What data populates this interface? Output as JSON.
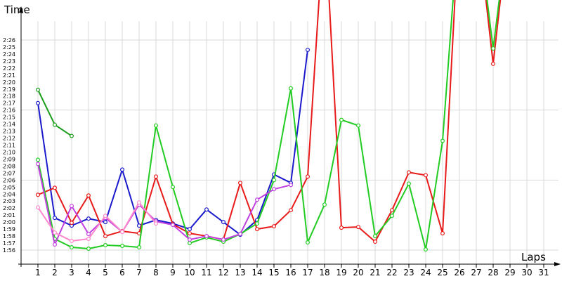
{
  "chart_data": {
    "type": "line",
    "xlabel": "Laps",
    "ylabel": "Time",
    "xlim": [
      1,
      31
    ],
    "ylim": [
      "1:56",
      "2:26"
    ],
    "x_ticks": [
      "1",
      "2",
      "3",
      "4",
      "5",
      "6",
      "7",
      "8",
      "9",
      "10",
      "11",
      "12",
      "13",
      "14",
      "15",
      "16",
      "17",
      "18",
      "19",
      "20",
      "21",
      "22",
      "23",
      "24",
      "25",
      "26",
      "27",
      "28",
      "29",
      "30",
      "31"
    ],
    "y_ticks": [
      "1:56",
      "1:57",
      "1:58",
      "1:59",
      "2:00",
      "2:01",
      "2:02",
      "2:03",
      "2:04",
      "2:05",
      "2:06",
      "2:07",
      "2:08",
      "2:09",
      "2:10",
      "2:11",
      "2:12",
      "2:13",
      "2:14",
      "2:15",
      "2:16",
      "2:17",
      "2:18",
      "2:19",
      "2:20",
      "2:21",
      "2:22",
      "2:23",
      "2:24",
      "2:25",
      "2:26"
    ],
    "grid": true,
    "series": [
      {
        "color": "#1a9e1a",
        "points": [
          [
            1,
            "2:18.9"
          ],
          [
            2,
            "2:13.9"
          ],
          [
            3,
            "2:12.3"
          ]
        ]
      },
      {
        "color": "#1a1acc",
        "points": [
          [
            1,
            "2:17.0"
          ],
          [
            2,
            "2:00.6"
          ],
          [
            3,
            "1:59.5"
          ],
          [
            4,
            "2:00.5"
          ],
          [
            5,
            "2:00.0"
          ],
          [
            6,
            "2:07.5"
          ],
          [
            7,
            "1:59.5"
          ],
          [
            8,
            "2:00.3"
          ],
          [
            9,
            "1:59.8"
          ],
          [
            10,
            "1:59.0"
          ],
          [
            11,
            "2:01.8"
          ],
          [
            12,
            "2:00.0"
          ],
          [
            13,
            "1:58.2"
          ],
          [
            14,
            "2:00.3"
          ],
          [
            15,
            "2:06.8"
          ],
          [
            16,
            "2:05.6"
          ],
          [
            17,
            "2:24.6"
          ]
        ]
      },
      {
        "color": "#e81a1a",
        "points": [
          [
            1,
            "2:03.9"
          ],
          [
            2,
            "2:04.9"
          ],
          [
            3,
            "1:59.9"
          ],
          [
            4,
            "2:03.8"
          ],
          [
            5,
            "1:58.0"
          ],
          [
            6,
            "1:58.7"
          ],
          [
            7,
            "1:58.4"
          ],
          [
            8,
            "2:06.5"
          ],
          [
            9,
            "1:59.7"
          ],
          [
            10,
            "1:58.4"
          ],
          [
            11,
            "1:58.0"
          ],
          [
            12,
            "1:57.5"
          ],
          [
            13,
            "2:05.6"
          ],
          [
            14,
            "1:59.0"
          ],
          [
            15,
            "1:59.4"
          ],
          [
            16,
            "2:01.7"
          ],
          [
            17,
            "2:06.5"
          ],
          [
            18,
            "2:44"
          ],
          [
            19,
            "1:59.2"
          ],
          [
            20,
            "1:59.3"
          ],
          [
            21,
            "1:57.2"
          ],
          [
            22,
            "2:01.7"
          ],
          [
            23,
            "2:07.1"
          ],
          [
            24,
            "2:06.7"
          ],
          [
            25,
            "1:58.4"
          ],
          [
            26,
            "2:44"
          ],
          [
            27,
            "2:44"
          ],
          [
            28,
            "2:22.6"
          ],
          [
            29,
            "2:44"
          ]
        ]
      },
      {
        "color": "#22cc22",
        "points": [
          [
            1,
            "2:08.9"
          ],
          [
            2,
            "1:57.6"
          ],
          [
            3,
            "1:56.4"
          ],
          [
            4,
            "1:56.2"
          ],
          [
            5,
            "1:56.7"
          ],
          [
            6,
            "1:56.6"
          ],
          [
            7,
            "1:56.4"
          ],
          [
            8,
            "2:13.8"
          ],
          [
            9,
            "2:05.0"
          ],
          [
            10,
            "1:57.0"
          ],
          [
            11,
            "1:57.8"
          ],
          [
            12,
            "1:57.2"
          ],
          [
            13,
            "1:58.3"
          ],
          [
            14,
            "1:59.8"
          ],
          [
            15,
            "2:06.0"
          ],
          [
            16,
            "2:19.1"
          ],
          [
            17,
            "1:57.1"
          ],
          [
            18,
            "2:02.5"
          ],
          [
            19,
            "2:14.6"
          ],
          [
            20,
            "2:13.8"
          ],
          [
            21,
            "1:58.0"
          ],
          [
            22,
            "2:00.9"
          ],
          [
            23,
            "2:05.5"
          ],
          [
            24,
            "1:56.1"
          ],
          [
            25,
            "2:11.6"
          ],
          [
            26,
            "2:44"
          ],
          [
            27,
            "2:44"
          ],
          [
            28,
            "2:24.8"
          ],
          [
            29,
            "2:44"
          ]
        ]
      },
      {
        "color": "#c040e0",
        "points": [
          [
            1,
            "2:08.3"
          ],
          [
            2,
            "1:56.8"
          ],
          [
            3,
            "2:02.3"
          ],
          [
            4,
            "1:58.3"
          ],
          [
            5,
            "2:00.6"
          ],
          [
            6,
            "1:58.6"
          ],
          [
            7,
            "2:02.5"
          ],
          [
            8,
            "2:00.1"
          ],
          [
            9,
            "1:59.6"
          ],
          [
            10,
            "1:57.5"
          ],
          [
            11,
            "1:58.0"
          ],
          [
            12,
            "1:57.5"
          ],
          [
            13,
            "1:58.3"
          ],
          [
            14,
            "2:03.2"
          ],
          [
            15,
            "2:04.7"
          ],
          [
            16,
            "2:05.3"
          ]
        ]
      },
      {
        "color": "#ff88cc",
        "points": [
          [
            1,
            "2:02.1"
          ],
          [
            2,
            "1:58.5"
          ],
          [
            3,
            "1:57.3"
          ],
          [
            4,
            "1:57.6"
          ],
          [
            5,
            "2:00.9"
          ],
          [
            6,
            "1:58.6"
          ],
          [
            7,
            "2:02.8"
          ],
          [
            8,
            "1:59.8"
          ]
        ]
      }
    ]
  }
}
